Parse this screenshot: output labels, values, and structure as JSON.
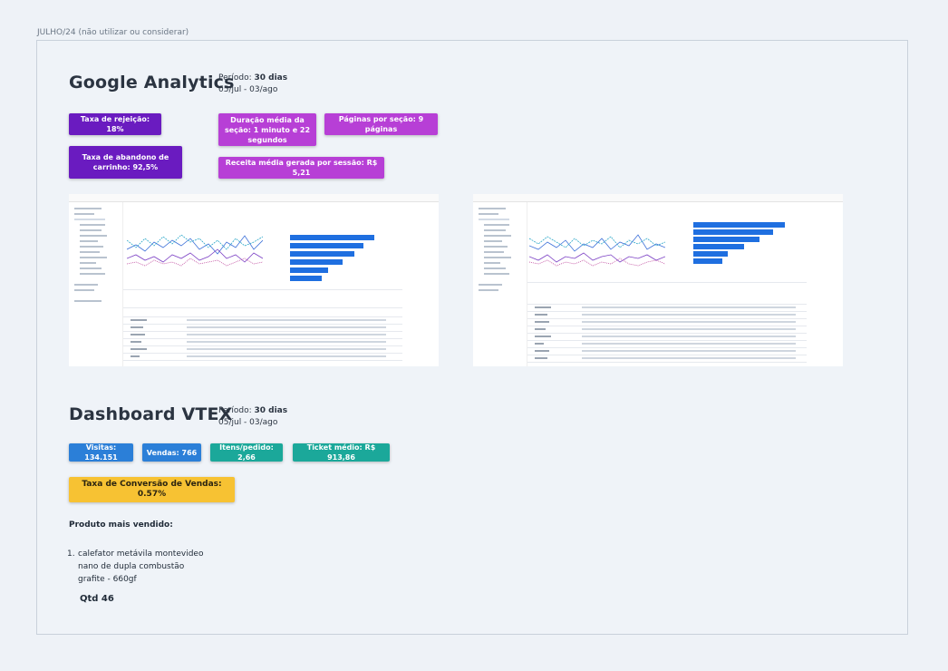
{
  "frame_label": "JULHO/24 (não utilizar ou considerar)",
  "ga": {
    "title": "Google Analytics",
    "period_label": "Período:",
    "period_value": "30 dias",
    "period_range": "05/jul - 03/ago",
    "cards": {
      "bounce": "Taxa de rejeição: 18%",
      "cart_abandon": "Taxa de abandono de carrinho: 92,5%",
      "avg_duration": "Duração média da seção: 1 minuto e 22 segundos",
      "pages_per_session": "Páginas por seção: 9 páginas",
      "revenue_per_session": "Receita média gerada por sessão: R$ 5,21"
    }
  },
  "vtex": {
    "title": "Dashboard VTEX",
    "period_label": "Período:",
    "period_value": "30 dias",
    "period_range": "05/jul - 03/ago",
    "cards": {
      "visits": "Visitas: 134.151",
      "sales": "Vendas: 766",
      "items_per_order": "Itens/pedido: 2,66",
      "avg_ticket": "Ticket médio: R$ 913,86",
      "conversion": "Taxa de Conversão de Vendas: 0.57%"
    },
    "best_seller_title": "Produto mais vendido:",
    "best_seller_index": "1.",
    "best_seller_name": "calefator metávila montevideo nano de dupla combustão grafite - 660gf",
    "best_seller_qty": "Qtd 46"
  },
  "colors": {
    "purple": "#6a1bc0",
    "magenta": "#b73fd6",
    "blue": "#2b7fd8",
    "teal": "#1ba89a",
    "yellow": "#f7c233",
    "chart_bar": "#1f6fe0"
  }
}
